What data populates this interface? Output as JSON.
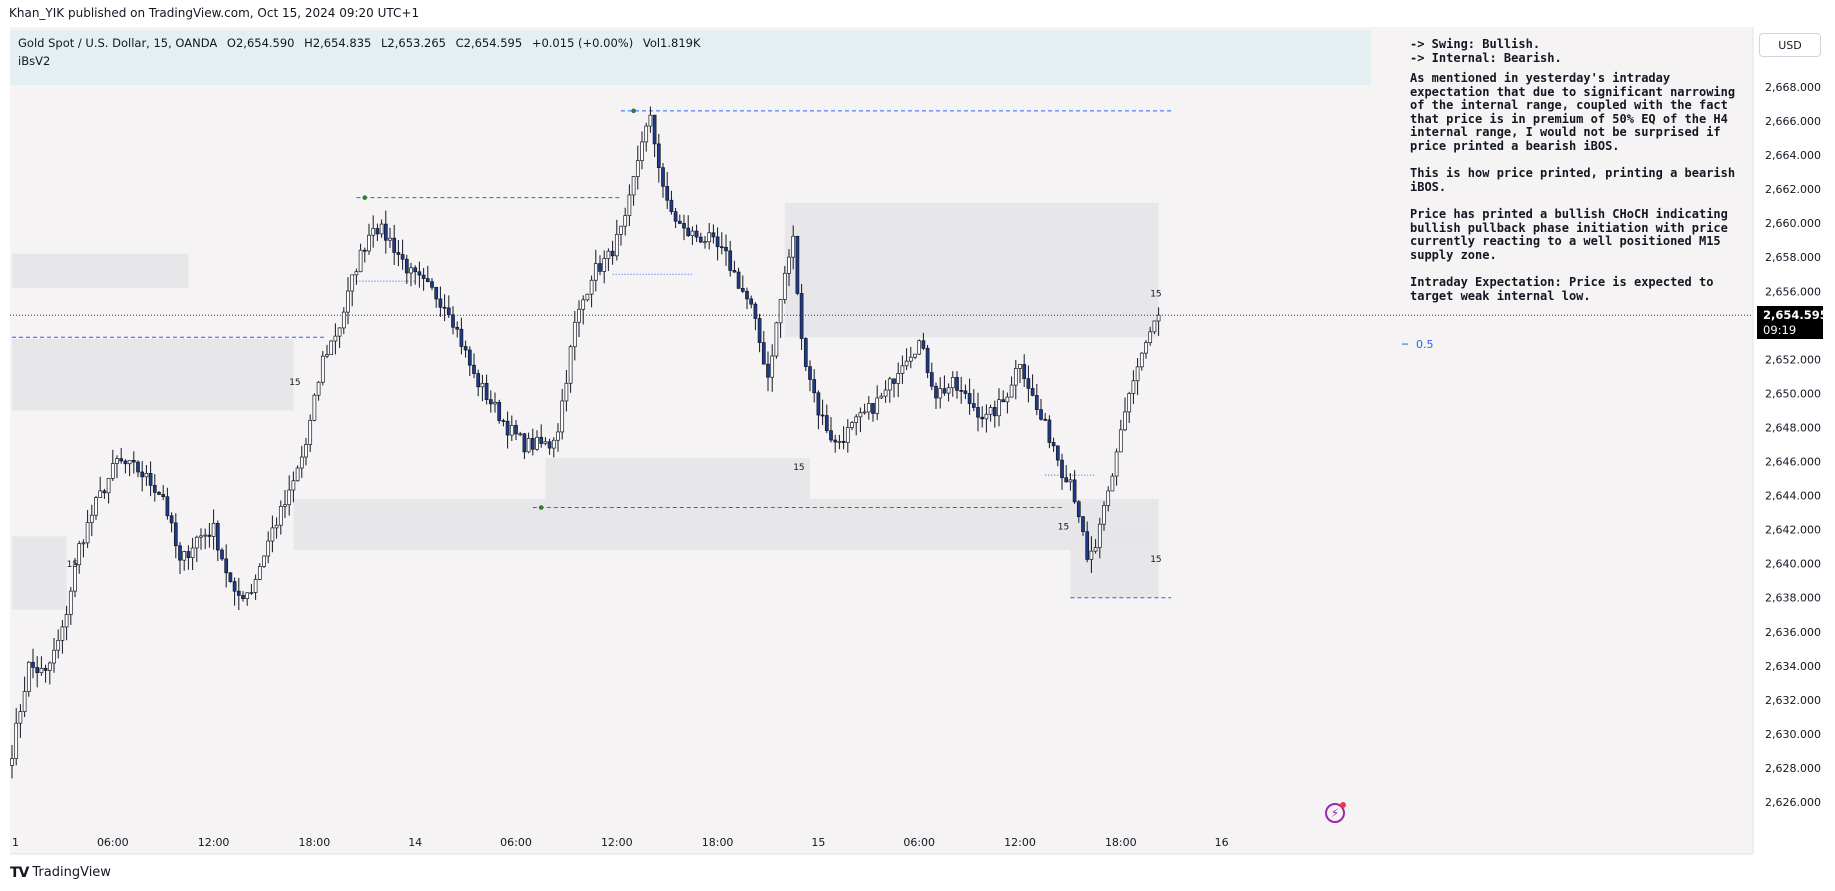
{
  "header": {
    "published": "Khan_YIK published on TradingView.com, Oct 15, 2024 09:20 UTC+1"
  },
  "legend": {
    "symbol": "Gold Spot / U.S. Dollar, 15, OANDA",
    "open": "O2,654.590",
    "high": "H2,654.835",
    "low": "L2,653.265",
    "close": "C2,654.595",
    "change": "+0.015 (+0.00%)",
    "volume": "Vol1.819K",
    "indicator": "iBsV2"
  },
  "currency": "USD",
  "note": {
    "swing": "-> Swing:  Bullish.",
    "internal": "-> Internal:  Bearish.",
    "p1": "As mentioned in yesterday's intraday expectation that due to significant narrowing of the internal range, coupled with the fact that price is in premium of 50% EQ of the H4 internal range, I would not be surprised if price printed a bearish iBOS.",
    "p2": "This is how price printed, printing a bearish iBOS.",
    "p3": "Price has printed a bullish CHoCH indicating bullish pullback phase initiation with price currently reacting to a well positioned M15 supply zone.",
    "p4": "Intraday Expectation: Price is expected to target weak internal low."
  },
  "last_price": {
    "price": "2,654.595",
    "countdown": "09:19"
  },
  "footer": {
    "brand": "TradingView"
  },
  "colors": {
    "bull": "#ffffff",
    "bear": "#1e3a8a",
    "wick": "#131722",
    "zone": "#e6e6e9",
    "plot_bg": "#f5f3f4",
    "level": "#2962ff",
    "swing_point": "#2e7d32"
  },
  "chart_data": {
    "type": "candlestick",
    "symbol": "XAUUSD",
    "timeframe": "15",
    "y_ticks": [
      "2,668.000",
      "2,666.000",
      "2,664.000",
      "2,662.000",
      "2,660.000",
      "2,658.000",
      "2,656.000",
      "2,654.000",
      "2,652.000",
      "2,650.000",
      "2,648.000",
      "2,646.000",
      "2,644.000",
      "2,642.000",
      "2,640.000",
      "2,638.000",
      "2,636.000",
      "2,634.000",
      "2,632.000",
      "2,630.000",
      "2,628.000",
      "2,626.000"
    ],
    "ylim": [
      2624.5,
      2669.8
    ],
    "x_ticks": [
      "1",
      "06:00",
      "12:00",
      "18:00",
      "14",
      "06:00",
      "12:00",
      "18:00",
      "15",
      "06:00",
      "12:00",
      "18:00",
      "16"
    ],
    "bar_index_range": [
      0,
      208
    ],
    "path": [
      [
        0,
        2629
      ],
      [
        4,
        2634
      ],
      [
        8,
        2633.5
      ],
      [
        12,
        2636
      ],
      [
        16,
        2641
      ],
      [
        20,
        2643.5
      ],
      [
        25,
        2646
      ],
      [
        30,
        2645.5
      ],
      [
        36,
        2644
      ],
      [
        40,
        2640
      ],
      [
        44,
        2641.5
      ],
      [
        48,
        2642
      ],
      [
        53,
        2638
      ],
      [
        57,
        2638.5
      ],
      [
        62,
        2642
      ],
      [
        66,
        2644
      ],
      [
        70,
        2647
      ],
      [
        74,
        2652
      ],
      [
        78,
        2654
      ],
      [
        82,
        2657.5
      ],
      [
        86,
        2660
      ],
      [
        90,
        2659
      ],
      [
        95,
        2657
      ],
      [
        100,
        2656
      ],
      [
        104,
        2655
      ],
      [
        110,
        2651
      ],
      [
        114,
        2649.5
      ],
      [
        118,
        2648
      ],
      [
        122,
        2647
      ],
      [
        128,
        2647
      ],
      [
        130,
        2648
      ],
      [
        134,
        2654
      ],
      [
        138,
        2657
      ],
      [
        142,
        2658
      ],
      [
        146,
        2660
      ],
      [
        150,
        2665
      ],
      [
        152,
        2666
      ],
      [
        156,
        2661
      ],
      [
        160,
        2659.5
      ],
      [
        166,
        2659
      ],
      [
        170,
        2658
      ],
      [
        174,
        2656
      ],
      [
        176,
        2655
      ],
      [
        180,
        2651
      ],
      [
        184,
        2657
      ],
      [
        186,
        2659
      ],
      [
        188,
        2653
      ],
      [
        192,
        2649
      ],
      [
        196,
        2647
      ],
      [
        200,
        2648
      ],
      [
        204,
        2649
      ],
      [
        208,
        2650
      ],
      [
        212,
        2652
      ],
      [
        216,
        2653
      ],
      [
        220,
        2650
      ],
      [
        224,
        2650.5
      ],
      [
        228,
        2649.5
      ],
      [
        232,
        2648.5
      ],
      [
        236,
        2649.5
      ],
      [
        240,
        2652
      ],
      [
        244,
        2649
      ],
      [
        246,
        2648
      ],
      [
        248,
        2647
      ],
      [
        250,
        2645.5
      ],
      [
        252,
        2645
      ],
      [
        254,
        2643
      ],
      [
        256,
        2640
      ],
      [
        258,
        2641
      ],
      [
        260,
        2643
      ],
      [
        262,
        2645
      ],
      [
        264,
        2648
      ],
      [
        266,
        2650
      ],
      [
        268,
        2651.5
      ],
      [
        271,
        2653.5
      ],
      [
        273,
        2654.6
      ]
    ],
    "zones": [
      {
        "from_bar": 0,
        "to_bar": 42,
        "top": 2658.2,
        "bottom": 2656.2
      },
      {
        "from_bar": 0,
        "to_bar": 67,
        "top": 2653.2,
        "bottom": 2649.0
      },
      {
        "from_bar": 0,
        "to_bar": 13,
        "top": 2641.6,
        "bottom": 2637.3
      },
      {
        "from_bar": 67,
        "to_bar": 273,
        "top": 2643.8,
        "bottom": 2640.8
      },
      {
        "from_bar": 127,
        "to_bar": 190,
        "top": 2646.2,
        "bottom": 2643.8
      },
      {
        "from_bar": 184,
        "to_bar": 273,
        "top": 2661.2,
        "bottom": 2653.3
      },
      {
        "from_bar": 252,
        "to_bar": 273,
        "top": 2642.2,
        "bottom": 2638.0
      }
    ],
    "levels": [
      {
        "from_bar": 0,
        "to_bar": 75,
        "price": 2653.3,
        "style": "dashed"
      },
      {
        "from_bar": 82,
        "to_bar": 145,
        "price": 2661.5,
        "style": "dashed"
      },
      {
        "from_bar": 145,
        "to_bar": 276,
        "price": 2666.6,
        "style": "dashed"
      },
      {
        "from_bar": 124,
        "to_bar": 250,
        "price": 2643.3,
        "style": "dashed"
      },
      {
        "from_bar": 252,
        "to_bar": 276,
        "price": 2638.0,
        "style": "dashed"
      },
      {
        "from_bar": 82,
        "to_bar": 96,
        "price": 2656.6,
        "style": "dotted"
      },
      {
        "from_bar": 143,
        "to_bar": 162,
        "price": 2657.0,
        "style": "dotted"
      },
      {
        "from_bar": 246,
        "to_bar": 258,
        "price": 2645.2,
        "style": "dotted"
      }
    ],
    "zone_labels": [
      {
        "bar": 66,
        "price": 2650.5,
        "text": "15"
      },
      {
        "bar": 13,
        "price": 2639.8,
        "text": "15"
      },
      {
        "bar": 186,
        "price": 2645.5,
        "text": "15"
      },
      {
        "bar": 249,
        "price": 2642.0,
        "text": "15"
      },
      {
        "bar": 271,
        "price": 2655.7,
        "text": "15"
      },
      {
        "bar": 271,
        "price": 2640.1,
        "text": "15"
      }
    ],
    "eq_label": {
      "text": "0.5",
      "price": 2652.9
    },
    "current_price": 2654.595
  }
}
